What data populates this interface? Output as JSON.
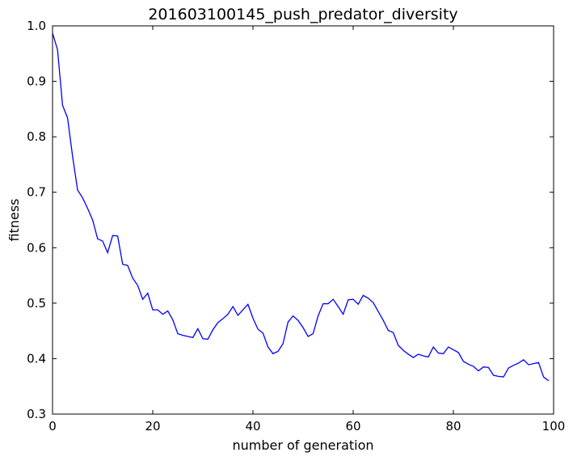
{
  "chart_data": {
    "type": "line",
    "title": "201603100145_push_predator_diversity",
    "xlabel": "number of generation",
    "ylabel": "fitness",
    "xlim": [
      0,
      100
    ],
    "ylim": [
      0.3,
      1.0
    ],
    "xticks": [
      0,
      20,
      40,
      60,
      80,
      100
    ],
    "xtick_labels": [
      "0",
      "20",
      "40",
      "60",
      "80",
      "100"
    ],
    "yticks": [
      0.3,
      0.4,
      0.5,
      0.6,
      0.7,
      0.8,
      0.9,
      1.0
    ],
    "ytick_labels": [
      "0.3",
      "0.4",
      "0.5",
      "0.6",
      "0.7",
      "0.8",
      "0.9",
      "1.0"
    ],
    "grid": false,
    "line_color": "#0000ff",
    "series": [
      {
        "x": [
          0,
          1,
          2,
          3,
          4,
          5,
          6,
          7,
          8,
          9,
          10,
          11,
          12,
          13,
          14,
          15,
          16,
          17,
          18,
          19,
          20,
          21,
          22,
          23,
          24,
          25,
          26,
          27,
          28,
          29,
          30,
          31,
          32,
          33,
          34,
          35,
          36,
          37,
          38,
          39,
          40,
          41,
          42,
          43,
          44,
          45,
          46,
          47,
          48,
          49,
          50,
          51,
          52,
          53,
          54,
          55,
          56,
          57,
          58,
          59,
          60,
          61,
          62,
          63,
          64,
          65,
          66,
          67,
          68,
          69,
          70,
          71,
          72,
          73,
          74,
          75,
          76,
          77,
          78,
          79,
          80,
          81,
          82,
          83,
          84,
          85,
          86,
          87,
          88,
          89,
          90,
          91,
          92,
          93,
          94,
          95,
          96,
          97,
          98,
          99
        ],
        "values": [
          0.987,
          0.957,
          0.857,
          0.834,
          0.765,
          0.704,
          0.69,
          0.671,
          0.65,
          0.616,
          0.612,
          0.591,
          0.622,
          0.621,
          0.57,
          0.568,
          0.545,
          0.532,
          0.507,
          0.518,
          0.488,
          0.488,
          0.48,
          0.486,
          0.47,
          0.445,
          0.442,
          0.44,
          0.438,
          0.454,
          0.436,
          0.435,
          0.452,
          0.465,
          0.472,
          0.48,
          0.494,
          0.478,
          0.488,
          0.498,
          0.473,
          0.453,
          0.446,
          0.421,
          0.409,
          0.413,
          0.427,
          0.466,
          0.477,
          0.469,
          0.456,
          0.44,
          0.445,
          0.477,
          0.499,
          0.499,
          0.507,
          0.494,
          0.48,
          0.506,
          0.507,
          0.498,
          0.514,
          0.509,
          0.501,
          0.485,
          0.469,
          0.451,
          0.447,
          0.424,
          0.415,
          0.408,
          0.402,
          0.408,
          0.405,
          0.403,
          0.421,
          0.41,
          0.409,
          0.421,
          0.416,
          0.411,
          0.395,
          0.39,
          0.386,
          0.378,
          0.385,
          0.384,
          0.37,
          0.368,
          0.367,
          0.383,
          0.388,
          0.392,
          0.398,
          0.389,
          0.391,
          0.393,
          0.367,
          0.36
        ]
      }
    ]
  }
}
